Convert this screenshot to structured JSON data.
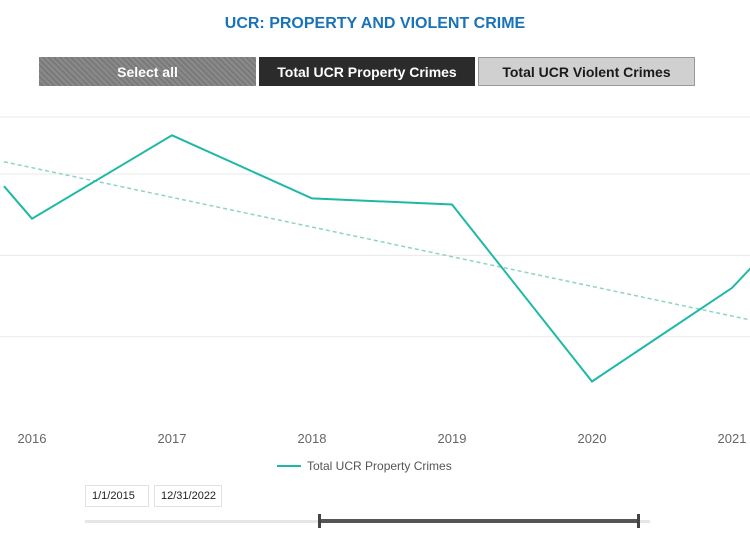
{
  "title": "UCR: PROPERTY AND VIOLENT CRIME",
  "slicer": {
    "select_all": "Select all",
    "property": "Total UCR Property Crimes",
    "violent": "Total UCR Violent Crimes",
    "selected": "Total UCR Property Crimes"
  },
  "date_range": {
    "start": "1/1/2015",
    "end": "12/31/2022"
  },
  "colors": {
    "title": "#1a73b8",
    "series": "#1fb8a6",
    "trend": "#8fd3c8"
  },
  "chart_data": {
    "type": "line",
    "x_ticks": [
      "2016",
      "2017",
      "2018",
      "2019",
      "2020",
      "2021"
    ],
    "x": [
      2015.8,
      2016.0,
      2017.0,
      2018.0,
      2019.0,
      2020.0,
      2021.0,
      2021.15
    ],
    "y": [
      0.74,
      0.58,
      0.99,
      0.68,
      0.65,
      -0.22,
      0.24,
      0.35
    ],
    "ylim": [
      -0.35,
      1.08
    ],
    "grid_y": [
      0.0,
      0.4,
      0.8
    ],
    "trend": {
      "x": [
        2015.8,
        2021.15
      ],
      "y": [
        0.86,
        0.08
      ],
      "style": "dashed"
    },
    "series": [
      {
        "name": "Total UCR Property Crimes"
      }
    ],
    "legend": "bottom-center",
    "grid": true
  }
}
